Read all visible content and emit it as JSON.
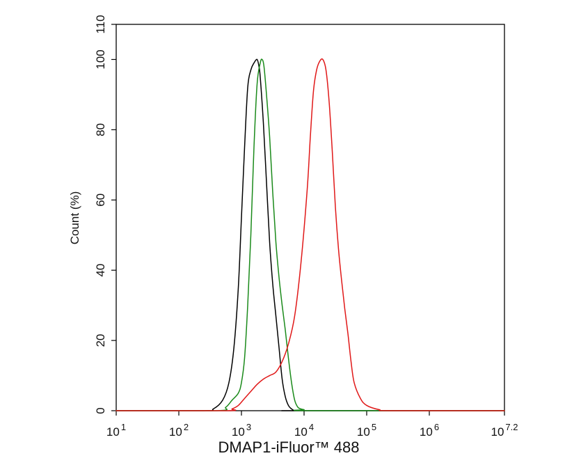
{
  "chart_data": {
    "type": "line",
    "xlabel": "DMAP1-iFluor™ 488",
    "ylabel": "Count  (%)",
    "x_scale": "log",
    "xlim": [
      1,
      7.2
    ],
    "ylim": [
      0,
      110
    ],
    "grid": false,
    "x_ticks": [
      {
        "base": "10",
        "exp": "1",
        "value": 1
      },
      {
        "base": "10",
        "exp": "2",
        "value": 2
      },
      {
        "base": "10",
        "exp": "3",
        "value": 3
      },
      {
        "base": "10",
        "exp": "4",
        "value": 4
      },
      {
        "base": "10",
        "exp": "5",
        "value": 5
      },
      {
        "base": "10",
        "exp": "6",
        "value": 6
      },
      {
        "base": "10",
        "exp": "7.2",
        "value": 7.2
      }
    ],
    "y_ticks": [
      "0",
      "20",
      "40",
      "60",
      "80",
      "100",
      "110"
    ],
    "y_tick_values": [
      0,
      20,
      40,
      60,
      80,
      100,
      110
    ],
    "series": [
      {
        "color": "#000000",
        "x": [
          1.0,
          2.4,
          2.55,
          2.7,
          2.8,
          2.88,
          2.95,
          3.0,
          3.05,
          3.1,
          3.15,
          3.2,
          3.25,
          3.28,
          3.3,
          3.35,
          3.4,
          3.45,
          3.5,
          3.55,
          3.6,
          3.65,
          3.7,
          3.75,
          3.8,
          3.85,
          3.9,
          7.2
        ],
        "y": [
          0,
          0,
          0.5,
          3,
          8,
          18,
          35,
          55,
          75,
          92,
          97,
          99,
          100,
          98,
          95,
          82,
          65,
          48,
          36,
          27,
          18,
          9,
          4,
          1.5,
          0.5,
          0,
          0,
          0
        ]
      },
      {
        "color": "#1a8a1a",
        "x": [
          1.0,
          2.6,
          2.75,
          2.85,
          2.95,
          3.0,
          3.05,
          3.1,
          3.15,
          3.2,
          3.25,
          3.3,
          3.33,
          3.36,
          3.4,
          3.45,
          3.5,
          3.55,
          3.6,
          3.65,
          3.7,
          3.75,
          3.8,
          3.85,
          3.9,
          3.95,
          4.0,
          4.1,
          7.2
        ],
        "y": [
          0,
          0,
          1,
          3,
          5,
          8,
          15,
          30,
          50,
          75,
          93,
          99,
          100,
          98,
          90,
          78,
          62,
          48,
          38,
          30,
          23,
          15,
          8,
          3,
          1,
          0.5,
          0.3,
          0,
          0
        ]
      },
      {
        "color": "#e01818",
        "x": [
          1.0,
          2.75,
          2.85,
          2.95,
          3.05,
          3.15,
          3.25,
          3.35,
          3.45,
          3.55,
          3.65,
          3.75,
          3.85,
          3.95,
          4.05,
          4.1,
          4.15,
          4.2,
          4.25,
          4.3,
          4.35,
          4.4,
          4.45,
          4.5,
          4.55,
          4.6,
          4.65,
          4.7,
          4.75,
          4.8,
          4.9,
          5.0,
          5.2,
          5.4,
          7.2
        ],
        "y": [
          0,
          0,
          0.5,
          1.5,
          3.5,
          5.5,
          7.5,
          9,
          10,
          11,
          14,
          19,
          27,
          42,
          63,
          78,
          91,
          97,
          99.5,
          100,
          97,
          88,
          74,
          58,
          46,
          37,
          29,
          22,
          14,
          8,
          3.5,
          1.5,
          0.3,
          0,
          0
        ]
      }
    ]
  }
}
